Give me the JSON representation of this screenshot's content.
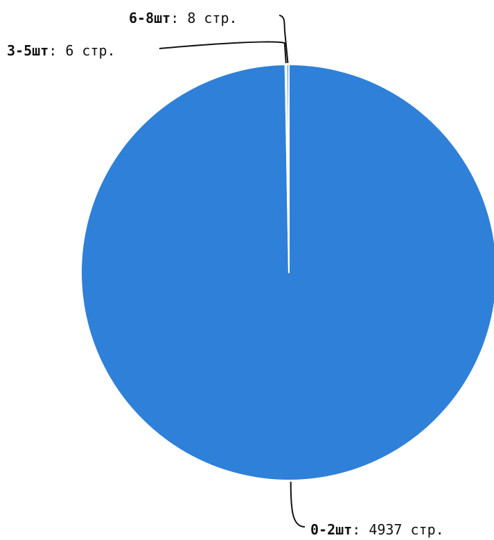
{
  "chart_data": {
    "type": "pie",
    "slices": [
      {
        "category": "0-2шт",
        "value": 4937,
        "value_label": "4937 стр.",
        "color": "#2f80d8"
      },
      {
        "category": "3-5шт",
        "value": 6,
        "value_label": "6 стр.",
        "color": "#2f80d8"
      },
      {
        "category": "6-8шт",
        "value": 8,
        "value_label": "8 стр.",
        "color": "#2f80d8"
      }
    ],
    "separator": ": ",
    "slice_border_color": "#ffffff",
    "leader_color": "#111111"
  }
}
